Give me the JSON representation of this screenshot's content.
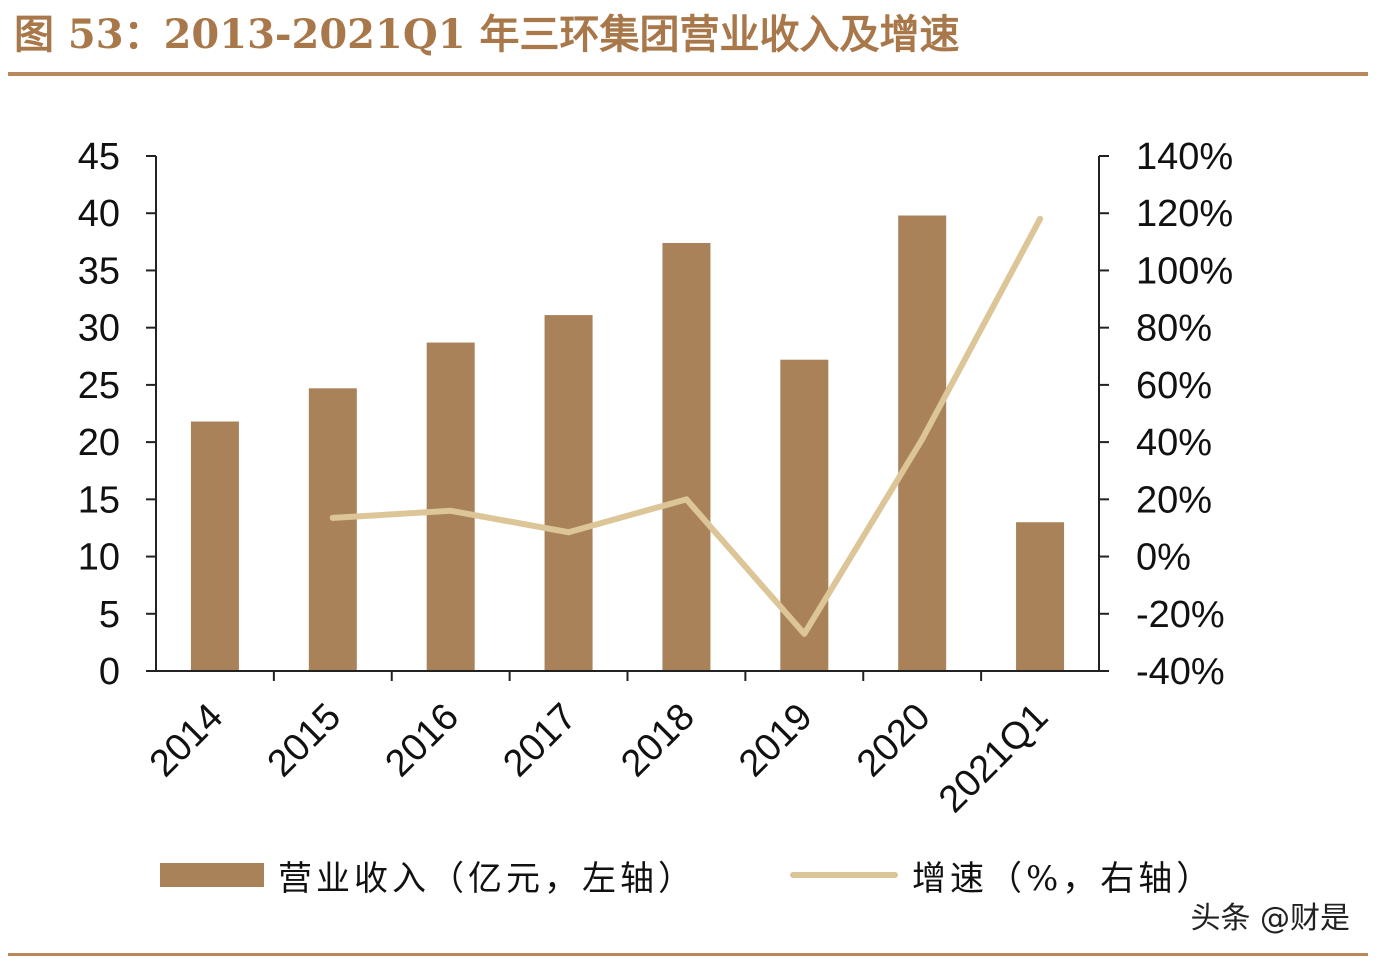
{
  "title": "图 53：2013-2021Q1 年三环集团营业收入及增速",
  "watermark": "头条 @财是",
  "colors": {
    "bar": "#a9825a",
    "line": "#dcc597",
    "accent": "#a9784a"
  },
  "chart_data": {
    "type": "bar",
    "categories": [
      "2014",
      "2015",
      "2016",
      "2017",
      "2018",
      "2019",
      "2020",
      "2021Q1"
    ],
    "series": [
      {
        "name": "营业收入（亿元，左轴）",
        "type": "bar",
        "axis": "left",
        "values": [
          21.8,
          24.7,
          28.7,
          31.1,
          37.4,
          27.2,
          39.8,
          13.0
        ]
      },
      {
        "name": "增速（%，右轴）",
        "type": "line",
        "axis": "right",
        "values": [
          null,
          13.5,
          16,
          8.5,
          20,
          -27,
          41,
          118
        ]
      }
    ],
    "y_left": {
      "min": 0,
      "max": 45,
      "step": 5,
      "ticks": [
        "0",
        "5",
        "10",
        "15",
        "20",
        "25",
        "30",
        "35",
        "40",
        "45"
      ]
    },
    "y_right": {
      "min": -40,
      "max": 140,
      "step": 20,
      "ticks": [
        "-40%",
        "-20%",
        "0%",
        "20%",
        "40%",
        "60%",
        "80%",
        "100%",
        "120%",
        "140%"
      ]
    },
    "grid": false,
    "legend": "bottom"
  }
}
